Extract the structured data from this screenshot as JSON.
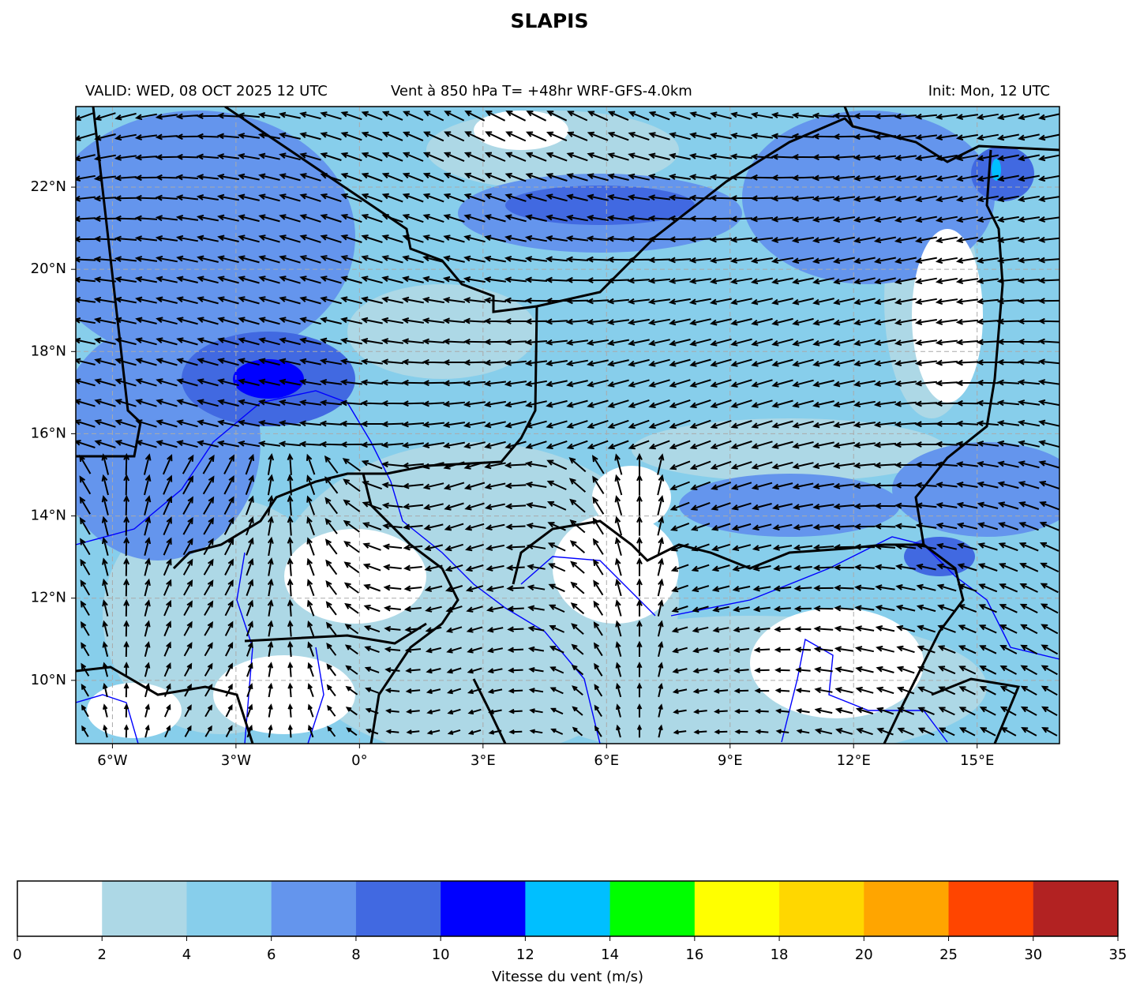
{
  "title": "SLAPIS",
  "subtitle_left": "VALID: WED, 08 OCT 2025 12 UTC",
  "subtitle_center": "Vent à 850 hPa T= +48hr  WRF-GFS-4.0km",
  "subtitle_right": "Init: Mon, 12 UTC",
  "map": {
    "xlim": [
      -6.89,
      17
    ],
    "ylim": [
      8.46,
      23.96
    ],
    "grid": true,
    "xticks": [
      {
        "value": -6,
        "label": "6°W"
      },
      {
        "value": -3,
        "label": "3°W"
      },
      {
        "value": 0,
        "label": "0°"
      },
      {
        "value": 3,
        "label": "3°E"
      },
      {
        "value": 6,
        "label": "6°E"
      },
      {
        "value": 9,
        "label": "9°E"
      },
      {
        "value": 12,
        "label": "12°E"
      },
      {
        "value": 15,
        "label": "15°E"
      }
    ],
    "yticks": [
      {
        "value": 10,
        "label": "10°N"
      },
      {
        "value": 12,
        "label": "12°N"
      },
      {
        "value": 14,
        "label": "14°N"
      },
      {
        "value": 16,
        "label": "16°N"
      },
      {
        "value": 18,
        "label": "18°N"
      },
      {
        "value": 20,
        "label": "20°N"
      },
      {
        "value": 22,
        "label": "22°N"
      }
    ]
  },
  "colorbar": {
    "label": "Vitesse du vent (m/s)",
    "levels": [
      0,
      2,
      4,
      6,
      8,
      10,
      12,
      14,
      16,
      18,
      20,
      25,
      30,
      35
    ],
    "colors": [
      "#ffffff",
      "#add8e6",
      "#87ceeb",
      "#6495ed",
      "#4169e1",
      "#0000ff",
      "#00bfff",
      "#00ff00",
      "#ffff00",
      "#ffd700",
      "#ffa500",
      "#ff4500",
      "#b22222"
    ]
  }
}
